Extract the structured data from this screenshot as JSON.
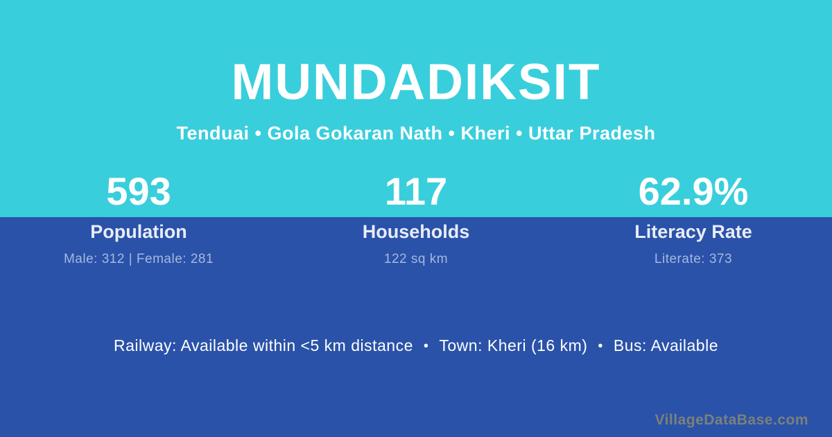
{
  "header": {
    "title": "MUNDADIKSIT",
    "subtitle": "Tenduai • Gola Gokaran Nath • Kheri • Uttar Pradesh"
  },
  "stats": [
    {
      "value": "593",
      "label": "Population",
      "detail": "Male: 312 | Female: 281"
    },
    {
      "value": "117",
      "label": "Households",
      "detail": "122 sq km"
    },
    {
      "value": "62.9%",
      "label": "Literacy Rate",
      "detail": "Literate: 373"
    }
  ],
  "info": {
    "separator": "•",
    "items": [
      "Railway: Available within <5 km distance",
      "Town: Kheri (16 km)",
      "Bus: Available"
    ]
  },
  "watermark": "VillageDataBase.com",
  "colors": {
    "top_bg": "#39CEDC",
    "bottom_bg": "#2A52A8",
    "title": "#FFFFFF",
    "label": "#E8EDF7",
    "detail": "#A6B8E0",
    "watermark": "#7B817B"
  }
}
